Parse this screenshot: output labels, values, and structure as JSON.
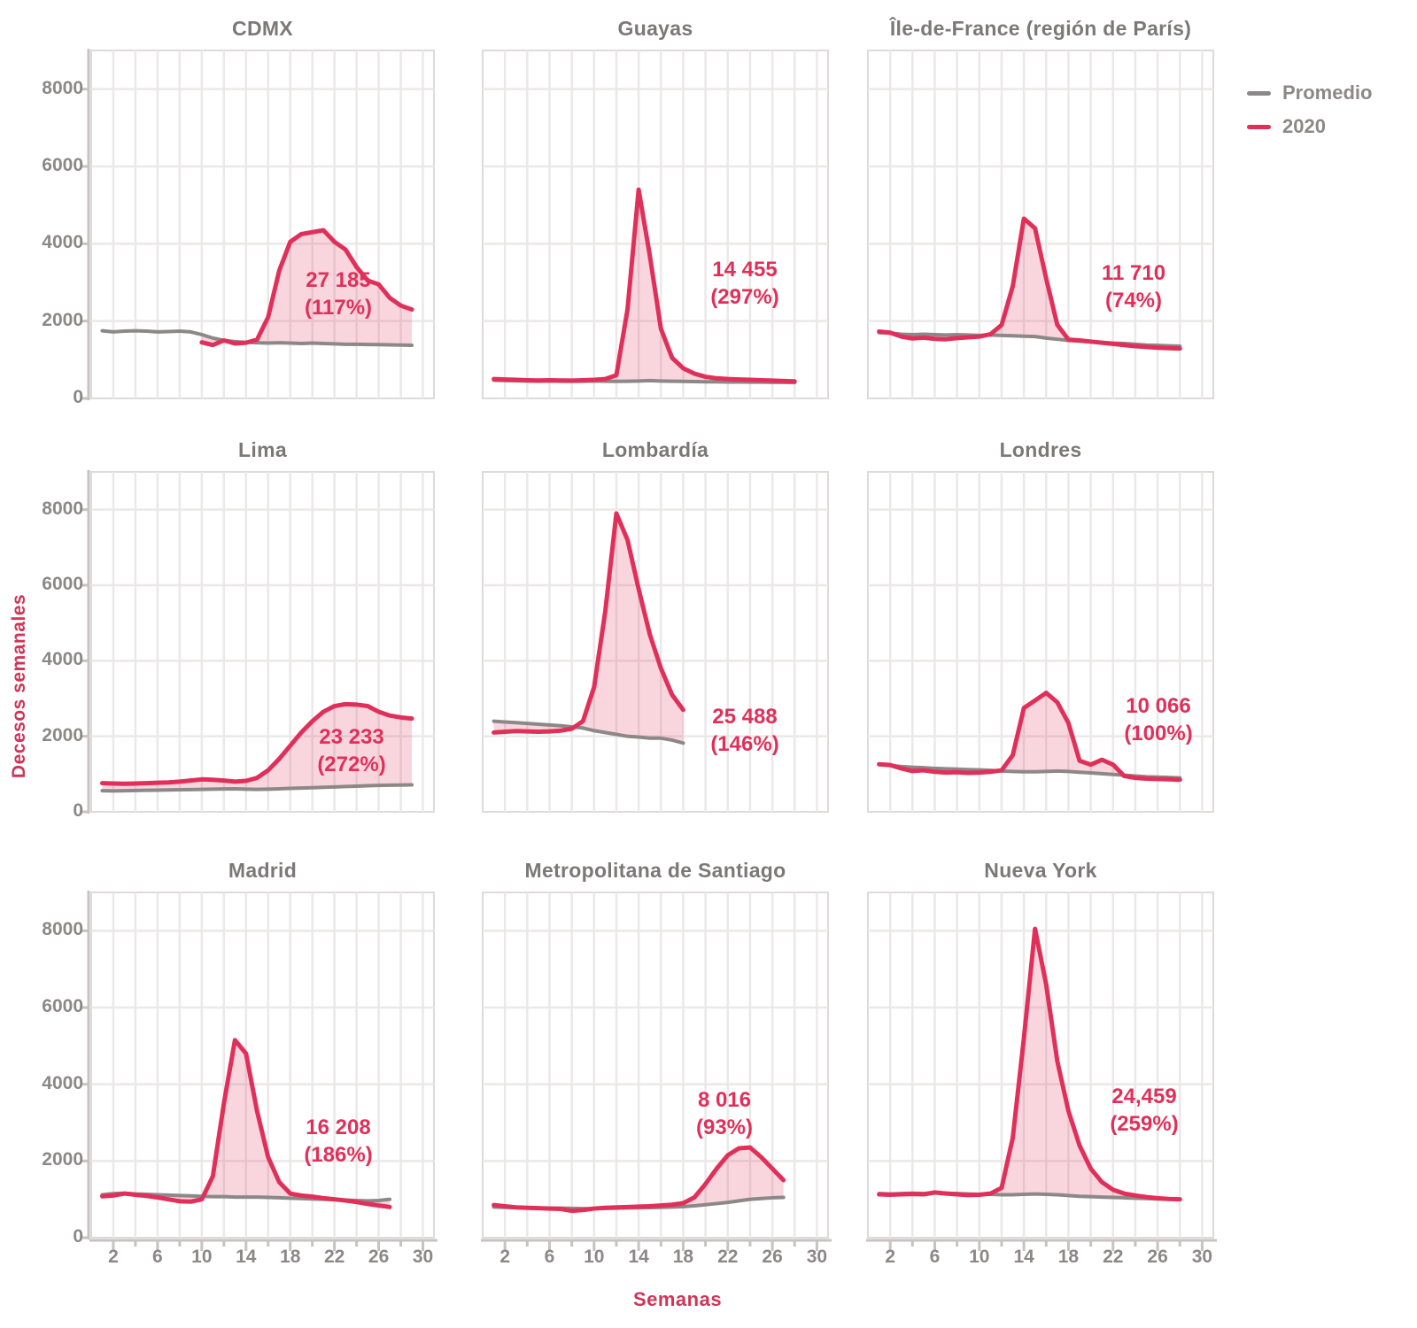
{
  "figure": {
    "y_axis_label": "Decesos semanales",
    "x_axis_label": "Semanas",
    "legend": {
      "items": [
        {
          "label": "Promedio",
          "color": "#8d8888"
        },
        {
          "label": "2020",
          "color": "#e0305a"
        }
      ]
    }
  },
  "style": {
    "line_2020": "#e0305a",
    "line_promedio": "#8d8888",
    "fill_2020": "rgba(224,48,90,0.20)",
    "grid": "#ebe8e8",
    "panel_border": "#dedada",
    "axis": "#c8c2c2",
    "title_color": "#7d7878",
    "tick_label_color": "#8d8888",
    "axis_label_color": "#cf3558",
    "annotation_color": "#e0305a"
  },
  "chart_data": {
    "type": "line",
    "x_unit": "week",
    "weeks_start": 1,
    "xlim": [
      0,
      31
    ],
    "ylim": [
      0,
      9000
    ],
    "grid": true,
    "legend_position": "top-right",
    "y_ticks": [
      0,
      2000,
      4000,
      6000,
      8000
    ],
    "y_tick_labels": [
      "0",
      "2000",
      "4000",
      "6000",
      "8000"
    ],
    "x_gridline_step": 2,
    "x_ticks_labeled": [
      2,
      6,
      10,
      14,
      18,
      22,
      26,
      30
    ],
    "series_names": [
      "Promedio",
      "2020"
    ],
    "facets": [
      {
        "title": "CDMX",
        "annotation": {
          "value": "27 185",
          "percent": "(117%)"
        },
        "series": {
          "promedio": [
            1750,
            1720,
            1740,
            1750,
            1740,
            1720,
            1730,
            1740,
            1720,
            1650,
            1560,
            1500,
            1470,
            1450,
            1440,
            1430,
            1440,
            1430,
            1420,
            1430,
            1420,
            1410,
            1400,
            1400,
            1395,
            1390,
            1385,
            1380,
            1375
          ],
          "y2020": [
            null,
            null,
            null,
            null,
            null,
            null,
            null,
            null,
            null,
            1450,
            1380,
            1500,
            1420,
            1440,
            1520,
            2100,
            3300,
            4050,
            4250,
            4300,
            4350,
            4050,
            3850,
            3400,
            3050,
            2950,
            2600,
            2400,
            2300
          ]
        }
      },
      {
        "title": "Guayas",
        "annotation": {
          "value": "14 455",
          "percent": "(297%)"
        },
        "series": {
          "promedio": [
            470,
            460,
            455,
            450,
            445,
            450,
            445,
            440,
            445,
            450,
            445,
            440,
            445,
            450,
            460,
            450,
            445,
            440,
            435,
            430,
            430,
            425,
            425,
            420,
            420,
            415,
            415,
            410
          ],
          "y2020": [
            500,
            490,
            480,
            470,
            465,
            470,
            465,
            460,
            470,
            480,
            500,
            600,
            2300,
            5400,
            3700,
            1800,
            1050,
            780,
            640,
            560,
            520,
            500,
            490,
            480,
            470,
            460,
            450,
            440
          ]
        }
      },
      {
        "title": "Île-de-France (región de París)",
        "annotation": {
          "value": "11 710",
          "percent": "(74%)"
        },
        "series": {
          "promedio": [
            1700,
            1690,
            1660,
            1650,
            1660,
            1650,
            1640,
            1650,
            1640,
            1630,
            1640,
            1630,
            1620,
            1610,
            1600,
            1560,
            1530,
            1500,
            1480,
            1460,
            1450,
            1430,
            1420,
            1400,
            1380,
            1370,
            1360,
            1350
          ],
          "y2020": [
            1730,
            1700,
            1600,
            1550,
            1570,
            1540,
            1530,
            1560,
            1580,
            1600,
            1660,
            1900,
            2900,
            4650,
            4400,
            3100,
            1900,
            1520,
            1500,
            1470,
            1440,
            1410,
            1380,
            1350,
            1330,
            1310,
            1300,
            1290
          ]
        }
      },
      {
        "title": "Lima",
        "annotation": {
          "value": "23 233",
          "percent": "(272%)"
        },
        "series": {
          "promedio": [
            560,
            555,
            560,
            565,
            570,
            575,
            580,
            585,
            590,
            595,
            600,
            605,
            610,
            600,
            595,
            600,
            610,
            620,
            630,
            640,
            650,
            660,
            670,
            680,
            690,
            700,
            705,
            710,
            715
          ],
          "y2020": [
            760,
            750,
            745,
            750,
            760,
            770,
            780,
            800,
            830,
            860,
            850,
            830,
            800,
            820,
            900,
            1100,
            1400,
            1750,
            2100,
            2400,
            2650,
            2800,
            2850,
            2840,
            2800,
            2650,
            2550,
            2500,
            2470
          ]
        }
      },
      {
        "title": "Lombardía",
        "annotation": {
          "value": "25 488",
          "percent": "(146%)"
        },
        "series": {
          "promedio": [
            2400,
            2380,
            2360,
            2340,
            2320,
            2300,
            2280,
            2250,
            2220,
            2150,
            2100,
            2050,
            2000,
            1980,
            1950,
            1950,
            1900,
            1820
          ],
          "y2020": [
            2100,
            2120,
            2140,
            2130,
            2120,
            2130,
            2150,
            2200,
            2400,
            3300,
            5300,
            7900,
            7200,
            5900,
            4700,
            3800,
            3100,
            2700
          ]
        }
      },
      {
        "title": "Londres",
        "annotation": {
          "value": "10 066",
          "percent": "(100%)"
        },
        "series": {
          "promedio": [
            1250,
            1230,
            1200,
            1180,
            1170,
            1150,
            1140,
            1130,
            1120,
            1110,
            1100,
            1080,
            1070,
            1060,
            1060,
            1070,
            1080,
            1070,
            1050,
            1030,
            1010,
            990,
            970,
            950,
            930,
            920,
            910,
            900
          ],
          "y2020": [
            1260,
            1240,
            1150,
            1080,
            1100,
            1060,
            1040,
            1050,
            1030,
            1040,
            1060,
            1100,
            1500,
            2750,
            2950,
            3150,
            2900,
            2350,
            1350,
            1250,
            1380,
            1250,
            950,
            900,
            880,
            870,
            860,
            850
          ]
        }
      },
      {
        "title": "Madrid",
        "annotation": {
          "value": "16 208",
          "percent": "(186%)"
        },
        "series": {
          "promedio": [
            1120,
            1150,
            1160,
            1140,
            1130,
            1120,
            1110,
            1100,
            1090,
            1080,
            1070,
            1070,
            1060,
            1060,
            1060,
            1050,
            1040,
            1030,
            1020,
            1010,
            1000,
            990,
            980,
            970,
            960,
            970,
            1000
          ],
          "y2020": [
            1080,
            1100,
            1150,
            1120,
            1090,
            1050,
            1000,
            950,
            940,
            1000,
            1600,
            3500,
            5150,
            4800,
            3300,
            2100,
            1450,
            1150,
            1100,
            1070,
            1030,
            1000,
            970,
            930,
            880,
            840,
            800
          ]
        }
      },
      {
        "title": "Metropolitana de Santiago",
        "annotation": {
          "value": "8 016",
          "percent": "(93%)"
        },
        "series": {
          "promedio": [
            800,
            790,
            785,
            780,
            775,
            770,
            770,
            765,
            760,
            760,
            765,
            770,
            775,
            780,
            785,
            790,
            800,
            810,
            830,
            860,
            890,
            920,
            960,
            1000,
            1020,
            1040,
            1050
          ],
          "y2020": [
            850,
            820,
            790,
            780,
            770,
            760,
            750,
            700,
            720,
            760,
            780,
            790,
            800,
            810,
            820,
            840,
            860,
            900,
            1050,
            1400,
            1800,
            2150,
            2330,
            2350,
            2100,
            1800,
            1500
          ]
        }
      },
      {
        "title": "Nueva York",
        "annotation": {
          "value": "24,459",
          "percent": "(259%)"
        },
        "series": {
          "promedio": [
            1150,
            1140,
            1150,
            1160,
            1150,
            1170,
            1160,
            1150,
            1140,
            1130,
            1130,
            1120,
            1120,
            1130,
            1140,
            1130,
            1120,
            1100,
            1080,
            1070,
            1060,
            1050,
            1040,
            1030,
            1020,
            1010,
            1005,
            1000
          ],
          "y2020": [
            1130,
            1120,
            1130,
            1140,
            1130,
            1180,
            1150,
            1130,
            1110,
            1120,
            1150,
            1300,
            2600,
            5200,
            8050,
            6600,
            4600,
            3300,
            2400,
            1800,
            1450,
            1250,
            1150,
            1100,
            1060,
            1030,
            1010,
            1000
          ]
        }
      }
    ]
  }
}
